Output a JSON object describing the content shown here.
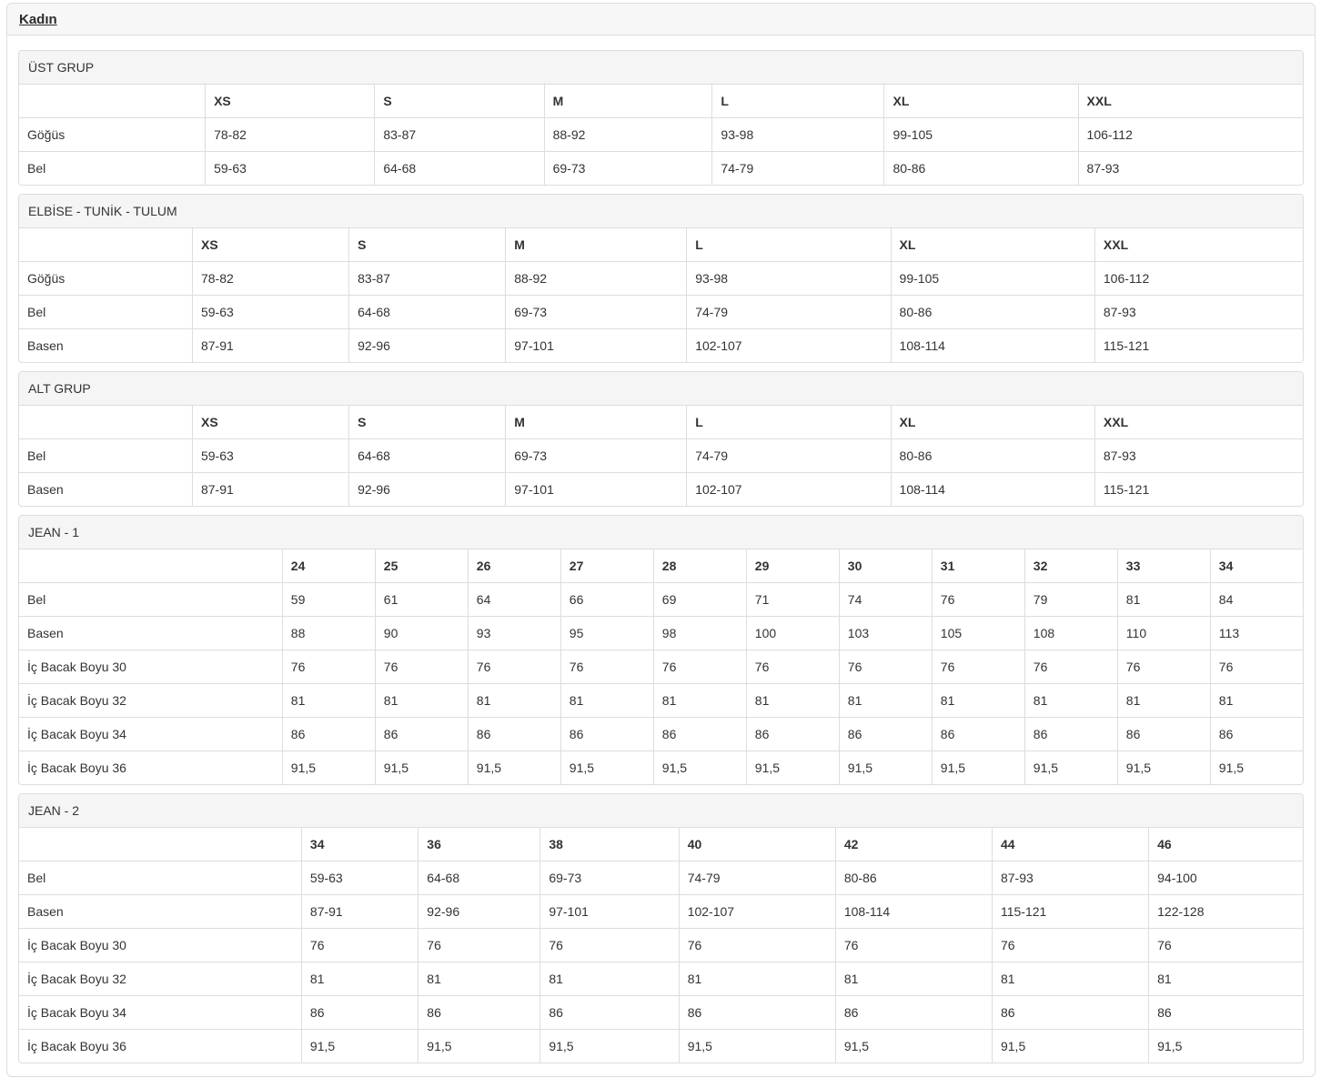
{
  "page": {
    "title": "Kadın"
  },
  "theme": {
    "border_color": "#dddddd",
    "panel_heading_bg": "#f5f5f5",
    "page_header_bg": "#f7f7f7",
    "text_color": "#333333"
  },
  "tables": [
    {
      "heading": "ÜST GRUP",
      "columns": [
        "",
        "XS",
        "S",
        "M",
        "L",
        "XL",
        "XXL"
      ],
      "rows": [
        {
          "label": "Göğüs",
          "values": [
            "78-82",
            "83-87",
            "88-92",
            "93-98",
            "99-105",
            "106-112"
          ]
        },
        {
          "label": "Bel",
          "values": [
            "59-63",
            "64-68",
            "69-73",
            "74-79",
            "80-86",
            "87-93"
          ]
        }
      ]
    },
    {
      "heading": "ELBİSE - TUNİK - TULUM",
      "columns": [
        "",
        "XS",
        "S",
        "M",
        "L",
        "XL",
        "XXL"
      ],
      "rows": [
        {
          "label": "Göğüs",
          "values": [
            "78-82",
            "83-87",
            "88-92",
            "93-98",
            "99-105",
            "106-112"
          ]
        },
        {
          "label": "Bel",
          "values": [
            "59-63",
            "64-68",
            "69-73",
            "74-79",
            "80-86",
            "87-93"
          ]
        },
        {
          "label": "Basen",
          "values": [
            "87-91",
            "92-96",
            "97-101",
            "102-107",
            "108-114",
            "115-121"
          ]
        }
      ]
    },
    {
      "heading": "ALT GRUP",
      "columns": [
        "",
        "XS",
        "S",
        "M",
        "L",
        "XL",
        "XXL"
      ],
      "rows": [
        {
          "label": "Bel",
          "values": [
            "59-63",
            "64-68",
            "69-73",
            "74-79",
            "80-86",
            "87-93"
          ]
        },
        {
          "label": "Basen",
          "values": [
            "87-91",
            "92-96",
            "97-101",
            "102-107",
            "108-114",
            "115-121"
          ]
        }
      ]
    },
    {
      "heading": "JEAN - 1",
      "columns": [
        "",
        "24",
        "25",
        "26",
        "27",
        "28",
        "29",
        "30",
        "31",
        "32",
        "33",
        "34"
      ],
      "rows": [
        {
          "label": "Bel",
          "values": [
            "59",
            "61",
            "64",
            "66",
            "69",
            "71",
            "74",
            "76",
            "79",
            "81",
            "84"
          ]
        },
        {
          "label": "Basen",
          "values": [
            "88",
            "90",
            "93",
            "95",
            "98",
            "100",
            "103",
            "105",
            "108",
            "110",
            "113"
          ]
        },
        {
          "label": "İç Bacak Boyu 30",
          "values": [
            "76",
            "76",
            "76",
            "76",
            "76",
            "76",
            "76",
            "76",
            "76",
            "76",
            "76"
          ]
        },
        {
          "label": "İç Bacak Boyu 32",
          "values": [
            "81",
            "81",
            "81",
            "81",
            "81",
            "81",
            "81",
            "81",
            "81",
            "81",
            "81"
          ]
        },
        {
          "label": "İç Bacak Boyu 34",
          "values": [
            "86",
            "86",
            "86",
            "86",
            "86",
            "86",
            "86",
            "86",
            "86",
            "86",
            "86"
          ]
        },
        {
          "label": "İç Bacak Boyu 36",
          "values": [
            "91,5",
            "91,5",
            "91,5",
            "91,5",
            "91,5",
            "91,5",
            "91,5",
            "91,5",
            "91,5",
            "91,5",
            "91,5"
          ]
        }
      ]
    },
    {
      "heading": "JEAN - 2",
      "columns": [
        "",
        "34",
        "36",
        "38",
        "40",
        "42",
        "44",
        "46"
      ],
      "rows": [
        {
          "label": "Bel",
          "values": [
            "59-63",
            "64-68",
            "69-73",
            "74-79",
            "80-86",
            "87-93",
            "94-100"
          ]
        },
        {
          "label": "Basen",
          "values": [
            "87-91",
            "92-96",
            "97-101",
            "102-107",
            "108-114",
            "115-121",
            "122-128"
          ]
        },
        {
          "label": "İç Bacak Boyu 30",
          "values": [
            "76",
            "76",
            "76",
            "76",
            "76",
            "76",
            "76"
          ]
        },
        {
          "label": "İç Bacak Boyu 32",
          "values": [
            "81",
            "81",
            "81",
            "81",
            "81",
            "81",
            "81"
          ]
        },
        {
          "label": "İç Bacak Boyu 34",
          "values": [
            "86",
            "86",
            "86",
            "86",
            "86",
            "86",
            "86"
          ]
        },
        {
          "label": "İç Bacak Boyu 36",
          "values": [
            "91,5",
            "91,5",
            "91,5",
            "91,5",
            "91,5",
            "91,5",
            "91,5"
          ]
        }
      ]
    }
  ]
}
